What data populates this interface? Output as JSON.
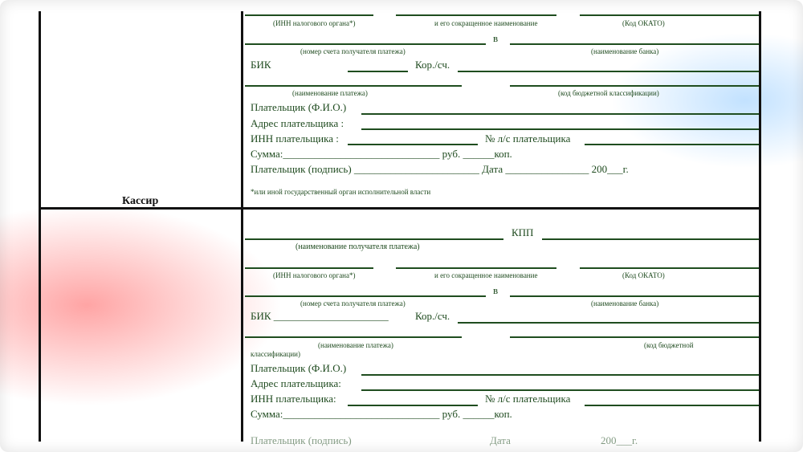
{
  "top": {
    "inn_label": "(ИНН налогового органа*)",
    "short_name_label": "и его сокращенное наименование",
    "okato_label": "(Код ОКАТО)",
    "v": "в",
    "account_label": "(номер счета получателя платежа)",
    "bank_label": "(наименование банка)",
    "bik": "БИК",
    "kor": "Кор./сч.",
    "payment_name_label": "(наименование платежа)",
    "kbk_label": "(код бюджетной классификации)",
    "payer_fio": "Плательщик  (Ф.И.О.)",
    "payer_address": "Адрес плательщика :",
    "payer_inn": "ИНН плательщика :",
    "ls": "№ л/с плательщика",
    "sum": "Сумма:______________________________ руб. ______коп.",
    "sign": "Плательщик (подпись) ________________________  Дата ________________ 200___г.",
    "footnote": "*или иной государственный орган исполнительной власти",
    "cashier": "Кассир"
  },
  "bottom": {
    "kpp": "КПП",
    "recipient_label": "(наименование получателя платежа)",
    "inn_label": "(ИНН налогового органа*)",
    "short_name_label": "и его сокращенное наименование",
    "okato_label": "(Код ОКАТО)",
    "v": "в",
    "account_label": "(номер счета получателя платежа)",
    "bank_label": "(наименование банка)",
    "bik": "БИК ______________________",
    "kor": "Кор./сч.",
    "payment_name_label": "(наименование платежа)",
    "kbk_label_1": "(код бюджетной",
    "kbk_label_2": "классификации)",
    "payer_fio": "Плательщик  (Ф.И.О.)",
    "payer_address": "Адрес плательщика:",
    "payer_inn": "ИНН плательщика:",
    "ls": "№ л/с плательщика",
    "sum": "Сумма:______________________________ руб. ______коп.",
    "sign_left": "Плательщик (подпись)",
    "sign_date": "Дата",
    "sign_year": "200___г."
  }
}
